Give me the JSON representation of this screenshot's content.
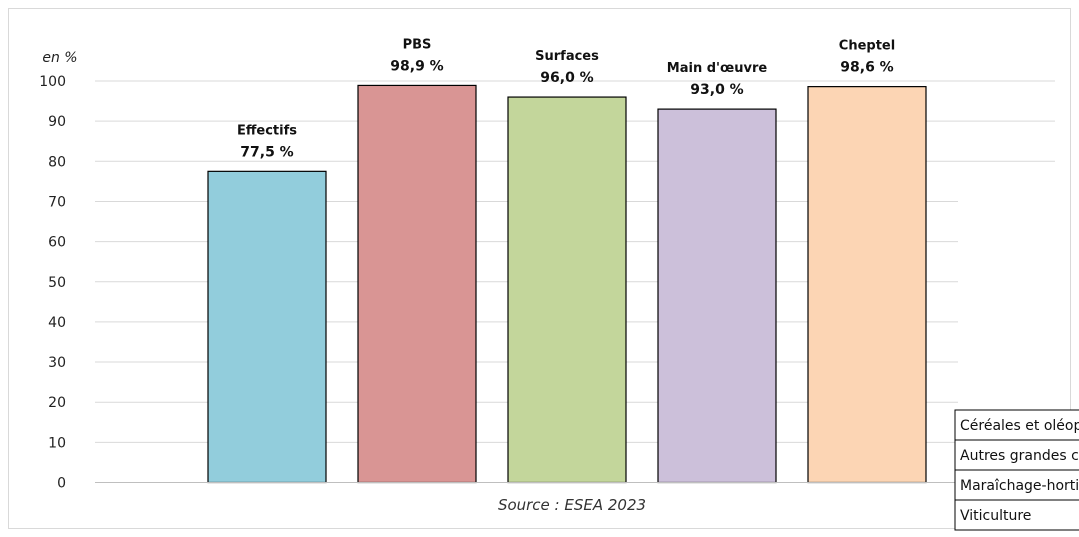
{
  "chart_data": {
    "type": "bar",
    "title": "",
    "unit_label": "en %",
    "xlabel": "",
    "ylabel": "",
    "ylim": [
      0,
      100
    ],
    "y_ticks": [
      0,
      10,
      20,
      30,
      40,
      50,
      60,
      70,
      80,
      90,
      100
    ],
    "grid": true,
    "categories": [
      "Effectifs",
      "PBS",
      "Surfaces",
      "Main d'œuvre",
      "Cheptel"
    ],
    "values": [
      77.5,
      98.9,
      96.0,
      93.0,
      98.6
    ],
    "value_labels": [
      "77,5 %",
      "98,9 %",
      "96,0 %",
      "93,0 %",
      "98,6 %"
    ],
    "colors": [
      "#92cddc",
      "#d99594",
      "#c3d69b",
      "#ccc0da",
      "#fcd5b4"
    ],
    "source": "Source : ESEA 2023"
  },
  "side_table": {
    "rows": [
      "Céréales et oléoprotéagineux",
      "Autres grandes cultures",
      "Maraîchage-horticulture",
      "Viticulture"
    ]
  }
}
